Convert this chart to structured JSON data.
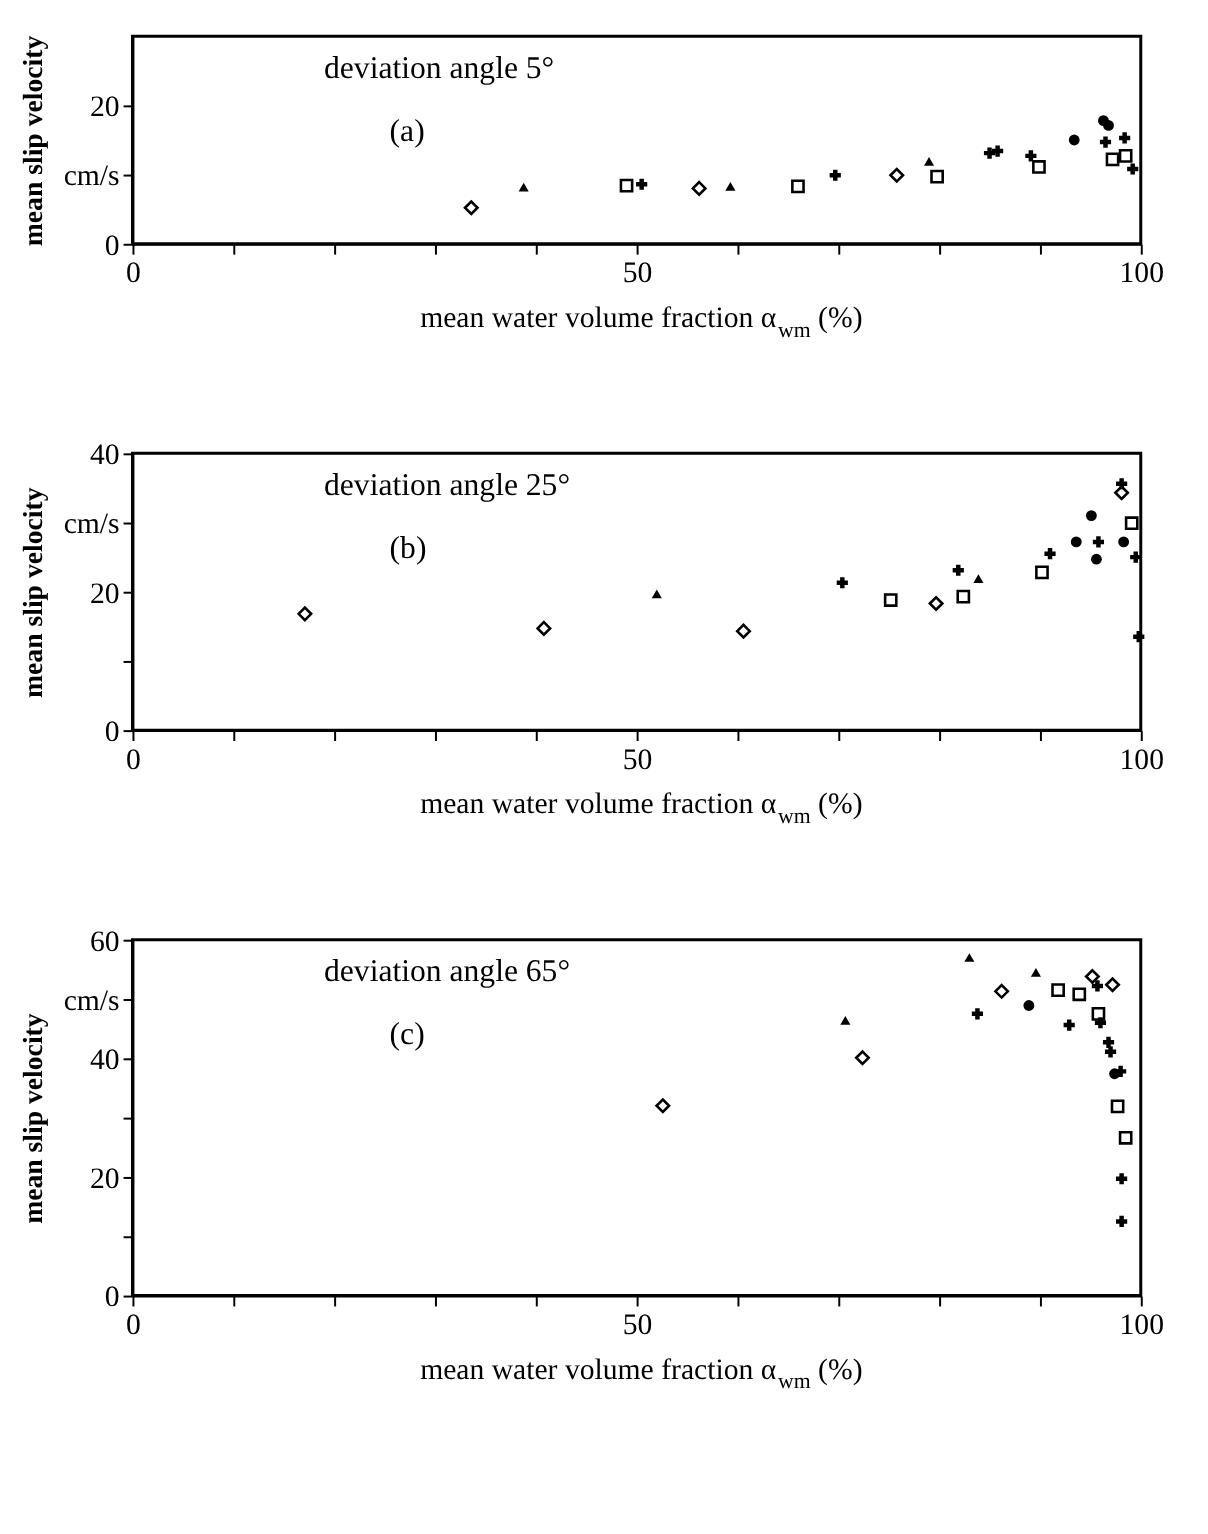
{
  "chart_data": [
    {
      "type": "scatter",
      "title": "deviation angle  5°",
      "annotations": [
        "(a)"
      ],
      "xlabel": "mean water volume fraction α$_{wm}$ (%)",
      "ylabel": "mean slip velocity",
      "xlim": [
        0,
        100
      ],
      "ylim": [
        0,
        30
      ],
      "xticks": [
        0,
        {
          "value": 10,
          "label": null
        },
        {
          "value": 20,
          "label": null
        },
        {
          "value": 30,
          "label": null
        },
        {
          "value": 40,
          "label": null
        },
        50,
        {
          "value": 60,
          "label": null
        },
        {
          "value": 70,
          "label": null
        },
        {
          "value": 80,
          "label": null
        },
        {
          "value": 90,
          "label": null
        },
        100
      ],
      "yticks": [
        0,
        {
          "value": 10,
          "label": "cm/s"
        },
        20
      ],
      "grid": false,
      "legend": false,
      "series": [
        {
          "marker": "diamond",
          "color": "#000000",
          "x": [
            33.6,
            56.2,
            75.8
          ],
          "values": [
            5.2,
            8.0,
            9.9
          ]
        },
        {
          "marker": "triangle",
          "color": "#000000",
          "x": [
            38.8,
            59.3,
            79.0
          ],
          "values": [
            8.2,
            8.3,
            11.9
          ]
        },
        {
          "marker": "square",
          "color": "#000000",
          "x": [
            49.0,
            66.0,
            79.8,
            89.9,
            97.2,
            98.5
          ],
          "values": [
            8.4,
            8.3,
            9.7,
            11.1,
            12.2,
            12.7
          ]
        },
        {
          "marker": "cross",
          "color": "#000000",
          "x": [
            50.5,
            69.7,
            85.8,
            89.1,
            98.4,
            85.0,
            96.5,
            99.2
          ],
          "values": [
            8.6,
            9.9,
            13.4,
            12.7,
            15.3,
            13.1,
            14.7,
            10.8
          ]
        },
        {
          "marker": "circle",
          "color": "#000000",
          "x": [
            93.4,
            96.3,
            96.8
          ],
          "values": [
            15.0,
            17.8,
            17.1
          ]
        }
      ]
    },
    {
      "type": "scatter",
      "title": "deviation angle  25°",
      "annotations": [
        "(b)"
      ],
      "xlabel": "mean water volume fraction α$_{wm}$ (%)",
      "ylabel": "mean slip velocity",
      "xlim": [
        0,
        100
      ],
      "ylim": [
        0,
        40
      ],
      "xticks": [
        0,
        {
          "value": 10,
          "label": null
        },
        {
          "value": 20,
          "label": null
        },
        {
          "value": 30,
          "label": null
        },
        {
          "value": 40,
          "label": null
        },
        50,
        {
          "value": 60,
          "label": null
        },
        {
          "value": 70,
          "label": null
        },
        {
          "value": 80,
          "label": null
        },
        {
          "value": 90,
          "label": null
        },
        100
      ],
      "yticks": [
        0,
        {
          "value": 10,
          "label": null
        },
        20,
        {
          "value": 30,
          "label": "cm/s"
        },
        40
      ],
      "grid": false,
      "legend": false,
      "series": [
        {
          "marker": "diamond",
          "color": "#000000",
          "x": [
            17.1,
            40.8,
            60.6,
            79.7,
            98.1
          ],
          "values": [
            16.8,
            14.7,
            14.3,
            18.3,
            34.3
          ]
        },
        {
          "marker": "triangle",
          "color": "#000000",
          "x": [
            52.0,
            83.9
          ],
          "values": [
            19.7,
            21.9
          ]
        },
        {
          "marker": "square",
          "color": "#000000",
          "x": [
            75.2,
            82.4,
            90.2,
            99.1
          ],
          "values": [
            18.8,
            19.3,
            22.8,
            29.9
          ]
        },
        {
          "marker": "cross",
          "color": "#000000",
          "x": [
            70.4,
            81.9,
            91.0,
            98.1,
            95.8,
            99.5,
            99.8
          ],
          "values": [
            21.3,
            23.1,
            25.5,
            35.6,
            27.2,
            25.0,
            13.5
          ]
        },
        {
          "marker": "circle",
          "color": "#000000",
          "x": [
            95.1,
            93.6,
            95.6,
            98.3
          ],
          "values": [
            31.0,
            27.2,
            24.7,
            27.2
          ]
        }
      ]
    },
    {
      "type": "scatter",
      "title": "deviation angle  65°",
      "annotations": [
        "(c)"
      ],
      "xlabel": "mean water volume fraction α$_{wm}$ (%)",
      "ylabel": "mean slip velocity",
      "xlim": [
        0,
        100
      ],
      "ylim": [
        0,
        60
      ],
      "xticks": [
        0,
        {
          "value": 10,
          "label": null
        },
        {
          "value": 20,
          "label": null
        },
        {
          "value": 30,
          "label": null
        },
        {
          "value": 40,
          "label": null
        },
        50,
        {
          "value": 60,
          "label": null
        },
        {
          "value": 70,
          "label": null
        },
        {
          "value": 80,
          "label": null
        },
        {
          "value": 90,
          "label": null
        },
        100
      ],
      "yticks": [
        0,
        {
          "value": 10,
          "label": null
        },
        20,
        {
          "value": 30,
          "label": null
        },
        40,
        {
          "value": 50,
          "label": "cm/s"
        },
        60
      ],
      "grid": false,
      "legend": false,
      "series": [
        {
          "marker": "diamond",
          "color": "#000000",
          "x": [
            52.6,
            72.4,
            86.2,
            95.2,
            97.2
          ],
          "values": [
            32.0,
            40.1,
            51.3,
            53.8,
            52.4
          ]
        },
        {
          "marker": "triangle",
          "color": "#000000",
          "x": [
            70.7,
            83.0,
            89.6
          ],
          "values": [
            46.4,
            57.0,
            54.5
          ]
        },
        {
          "marker": "square",
          "color": "#000000",
          "x": [
            91.8,
            93.9,
            95.8,
            97.7,
            98.5
          ],
          "values": [
            51.5,
            50.8,
            47.5,
            31.9,
            26.6
          ]
        },
        {
          "marker": "cross",
          "color": "#000000",
          "x": [
            83.8,
            92.9,
            95.7,
            96.0,
            96.8,
            97.0,
            98.0,
            98.1,
            98.1
          ],
          "values": [
            47.5,
            45.6,
            52.2,
            46.0,
            42.7,
            41.1,
            37.8,
            19.7,
            12.5
          ]
        },
        {
          "marker": "circle",
          "color": "#000000",
          "x": [
            88.9,
            97.4
          ],
          "values": [
            48.9,
            37.4
          ]
        }
      ]
    }
  ]
}
